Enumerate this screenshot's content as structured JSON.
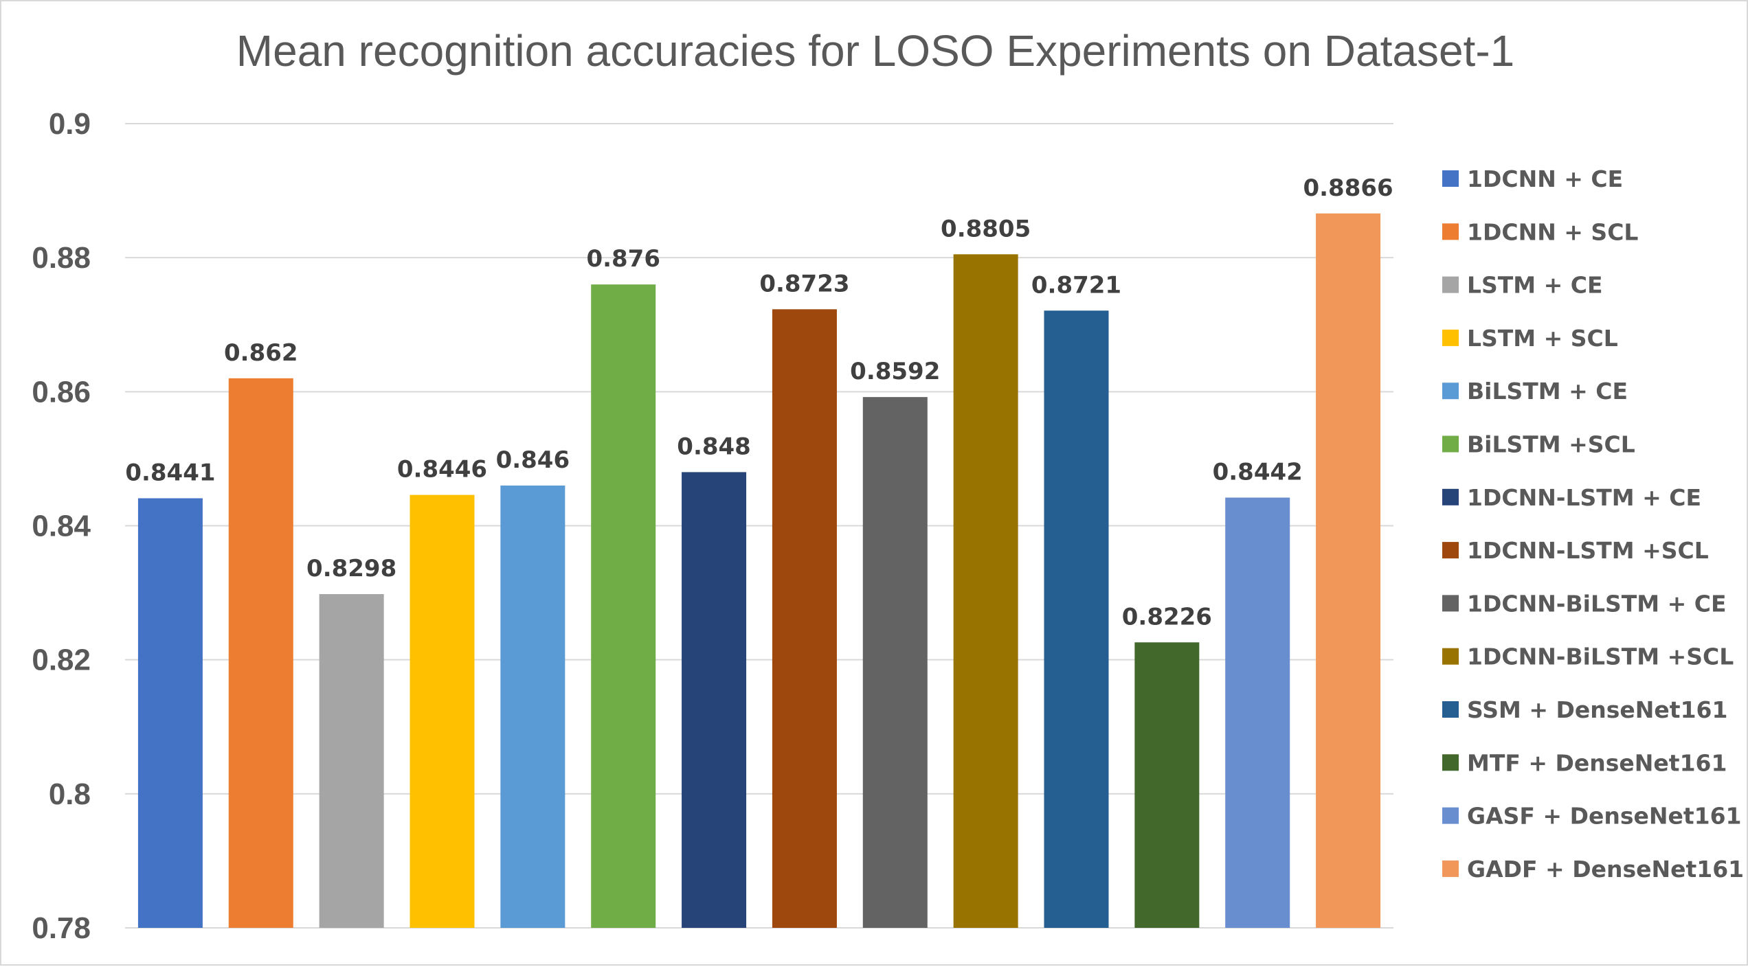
{
  "chart_data": {
    "type": "bar",
    "title": "Mean recognition accuracies for LOSO Experiments on Dataset-1",
    "xlabel": "",
    "ylabel": "",
    "ylim": [
      0.78,
      0.9
    ],
    "yticks": [
      0.78,
      0.8,
      0.82,
      0.84,
      0.86,
      0.88,
      0.9
    ],
    "ytick_labels": [
      "0.78",
      "0.8",
      "0.82",
      "0.84",
      "0.86",
      "0.88",
      "0.9"
    ],
    "grid": true,
    "legend_position": "right",
    "series": [
      {
        "name": "1DCNN + CE",
        "value": 0.8441,
        "label": "0.8441",
        "color": "#4472C4"
      },
      {
        "name": "1DCNN + SCL",
        "value": 0.862,
        "label": "0.862",
        "color": "#ED7D31"
      },
      {
        "name": "LSTM + CE",
        "value": 0.8298,
        "label": "0.8298",
        "color": "#A5A5A5"
      },
      {
        "name": "LSTM + SCL",
        "value": 0.8446,
        "label": "0.8446",
        "color": "#FFC000"
      },
      {
        "name": "BiLSTM + CE",
        "value": 0.846,
        "label": "0.846",
        "color": "#5B9BD5"
      },
      {
        "name": "BiLSTM +SCL",
        "value": 0.876,
        "label": "0.876",
        "color": "#70AD47"
      },
      {
        "name": "1DCNN-LSTM + CE",
        "value": 0.848,
        "label": "0.848",
        "color": "#264478"
      },
      {
        "name": "1DCNN-LSTM +SCL",
        "value": 0.8723,
        "label": "0.8723",
        "color": "#9E480E"
      },
      {
        "name": "1DCNN-BiLSTM + CE",
        "value": 0.8592,
        "label": "0.8592",
        "color": "#636363"
      },
      {
        "name": "1DCNN-BiLSTM +SCL",
        "value": 0.8805,
        "label": "0.8805",
        "color": "#997300"
      },
      {
        "name": "SSM + DenseNet161",
        "value": 0.8721,
        "label": "0.8721",
        "color": "#255E91"
      },
      {
        "name": "MTF + DenseNet161",
        "value": 0.8226,
        "label": "0.8226",
        "color": "#43682B"
      },
      {
        "name": "GASF + DenseNet161",
        "value": 0.8442,
        "label": "0.8442",
        "color": "#698ED0"
      },
      {
        "name": "GADF + DenseNet161",
        "value": 0.8866,
        "label": "0.8866",
        "color": "#F1975A"
      }
    ]
  }
}
